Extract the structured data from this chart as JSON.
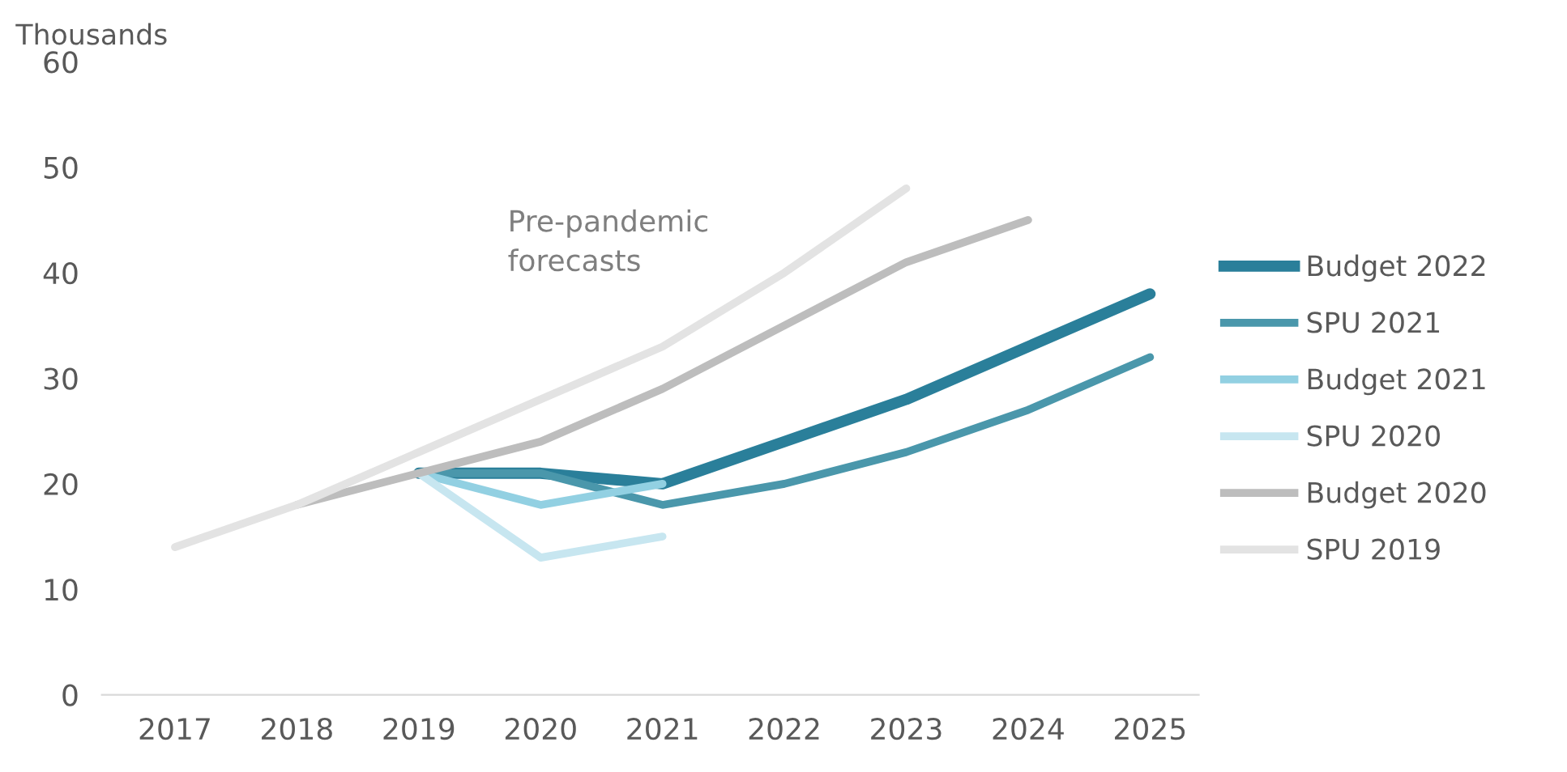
{
  "chart_data": {
    "type": "line",
    "ylabel": "Thousands",
    "categories": [
      "2017",
      "2018",
      "2019",
      "2020",
      "2021",
      "2022",
      "2023",
      "2024",
      "2025"
    ],
    "series": [
      {
        "name": "Budget 2022",
        "color": "#2a7f9a",
        "values": [
          null,
          null,
          21,
          21,
          20,
          24,
          28,
          33,
          38
        ]
      },
      {
        "name": "SPU 2021",
        "color": "#4a97ab",
        "values": [
          null,
          null,
          21,
          21,
          18,
          20,
          23,
          27,
          32
        ]
      },
      {
        "name": "Budget 2021",
        "color": "#92d0e2",
        "values": [
          null,
          null,
          21,
          18,
          20,
          null,
          null,
          null,
          null
        ]
      },
      {
        "name": "SPU 2020",
        "color": "#c7e6f0",
        "values": [
          null,
          null,
          21,
          13,
          15,
          null,
          null,
          null,
          null
        ]
      },
      {
        "name": "Budget 2020",
        "color": "#bdbdbd",
        "values": [
          null,
          18,
          21,
          24,
          29,
          35,
          41,
          45,
          null
        ]
      },
      {
        "name": "SPU 2019",
        "color": "#e3e3e3",
        "values": [
          14,
          18,
          23,
          28,
          33,
          40,
          48,
          null,
          null
        ]
      }
    ],
    "ylim": [
      0,
      60
    ],
    "yticks": [
      0,
      10,
      20,
      30,
      40,
      50,
      60
    ],
    "annotations": [
      "Pre-pandemic\nforecasts"
    ],
    "legend": "right",
    "grid": false
  }
}
